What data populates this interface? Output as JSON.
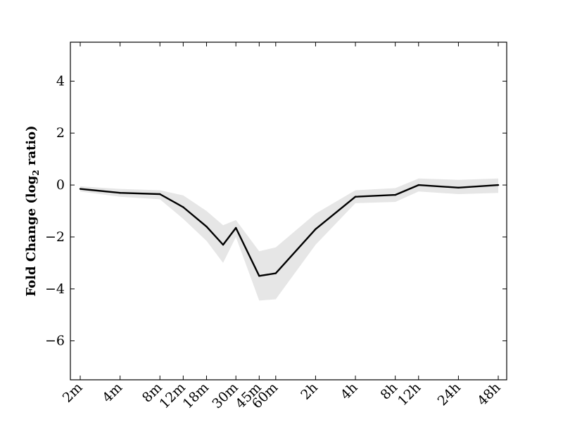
{
  "chart_data": {
    "type": "line",
    "title": "",
    "xlabel": "",
    "ylabel": {
      "prefix": "Fold Change (log",
      "subscript": "2",
      "suffix": " ratio)"
    },
    "x_scale": "log",
    "ylim": [
      -7.5,
      5.5
    ],
    "y_ticks": [
      4,
      2,
      0,
      -2,
      -4,
      -6
    ],
    "y_tick_labels": [
      "4",
      "2",
      "0",
      "−2",
      "−4",
      "−6"
    ],
    "grid": false,
    "legend": "none",
    "colors": {
      "line": "#000000",
      "band": "#e6e6e6",
      "axes": "#000000"
    },
    "points": [
      {
        "label": "2m",
        "minutes": 2,
        "y": -0.15,
        "lower": -0.25,
        "upper": -0.05,
        "tick": true
      },
      {
        "label": "4m",
        "minutes": 4,
        "y": -0.3,
        "lower": -0.45,
        "upper": -0.15,
        "tick": true
      },
      {
        "label": "8m",
        "minutes": 8,
        "y": -0.35,
        "lower": -0.55,
        "upper": -0.2,
        "tick": true
      },
      {
        "label": "12m",
        "minutes": 12,
        "y": -0.85,
        "lower": -1.3,
        "upper": -0.4,
        "tick": true
      },
      {
        "label": "18m",
        "minutes": 18,
        "y": -1.6,
        "lower": -2.15,
        "upper": -1.0,
        "tick": true
      },
      {
        "label": "",
        "minutes": 24,
        "y": -2.3,
        "lower": -3.0,
        "upper": -1.55,
        "tick": false
      },
      {
        "label": "30m",
        "minutes": 30,
        "y": -1.65,
        "lower": -2.0,
        "upper": -1.35,
        "tick": true
      },
      {
        "label": "45m",
        "minutes": 45,
        "y": -3.5,
        "lower": -4.45,
        "upper": -2.55,
        "tick": true
      },
      {
        "label": "60m",
        "minutes": 60,
        "y": -3.4,
        "lower": -4.4,
        "upper": -2.4,
        "tick": true
      },
      {
        "label": "2h",
        "minutes": 120,
        "y": -1.7,
        "lower": -2.3,
        "upper": -1.1,
        "tick": true
      },
      {
        "label": "4h",
        "minutes": 240,
        "y": -0.45,
        "lower": -0.7,
        "upper": -0.2,
        "tick": true
      },
      {
        "label": "8h",
        "minutes": 480,
        "y": -0.38,
        "lower": -0.65,
        "upper": -0.12,
        "tick": true
      },
      {
        "label": "12h",
        "minutes": 720,
        "y": 0.0,
        "lower": -0.25,
        "upper": 0.25,
        "tick": true
      },
      {
        "label": "24h",
        "minutes": 1440,
        "y": -0.1,
        "lower": -0.35,
        "upper": 0.2,
        "tick": true
      },
      {
        "label": "48h",
        "minutes": 2880,
        "y": 0.0,
        "lower": -0.3,
        "upper": 0.25,
        "tick": true
      }
    ]
  }
}
